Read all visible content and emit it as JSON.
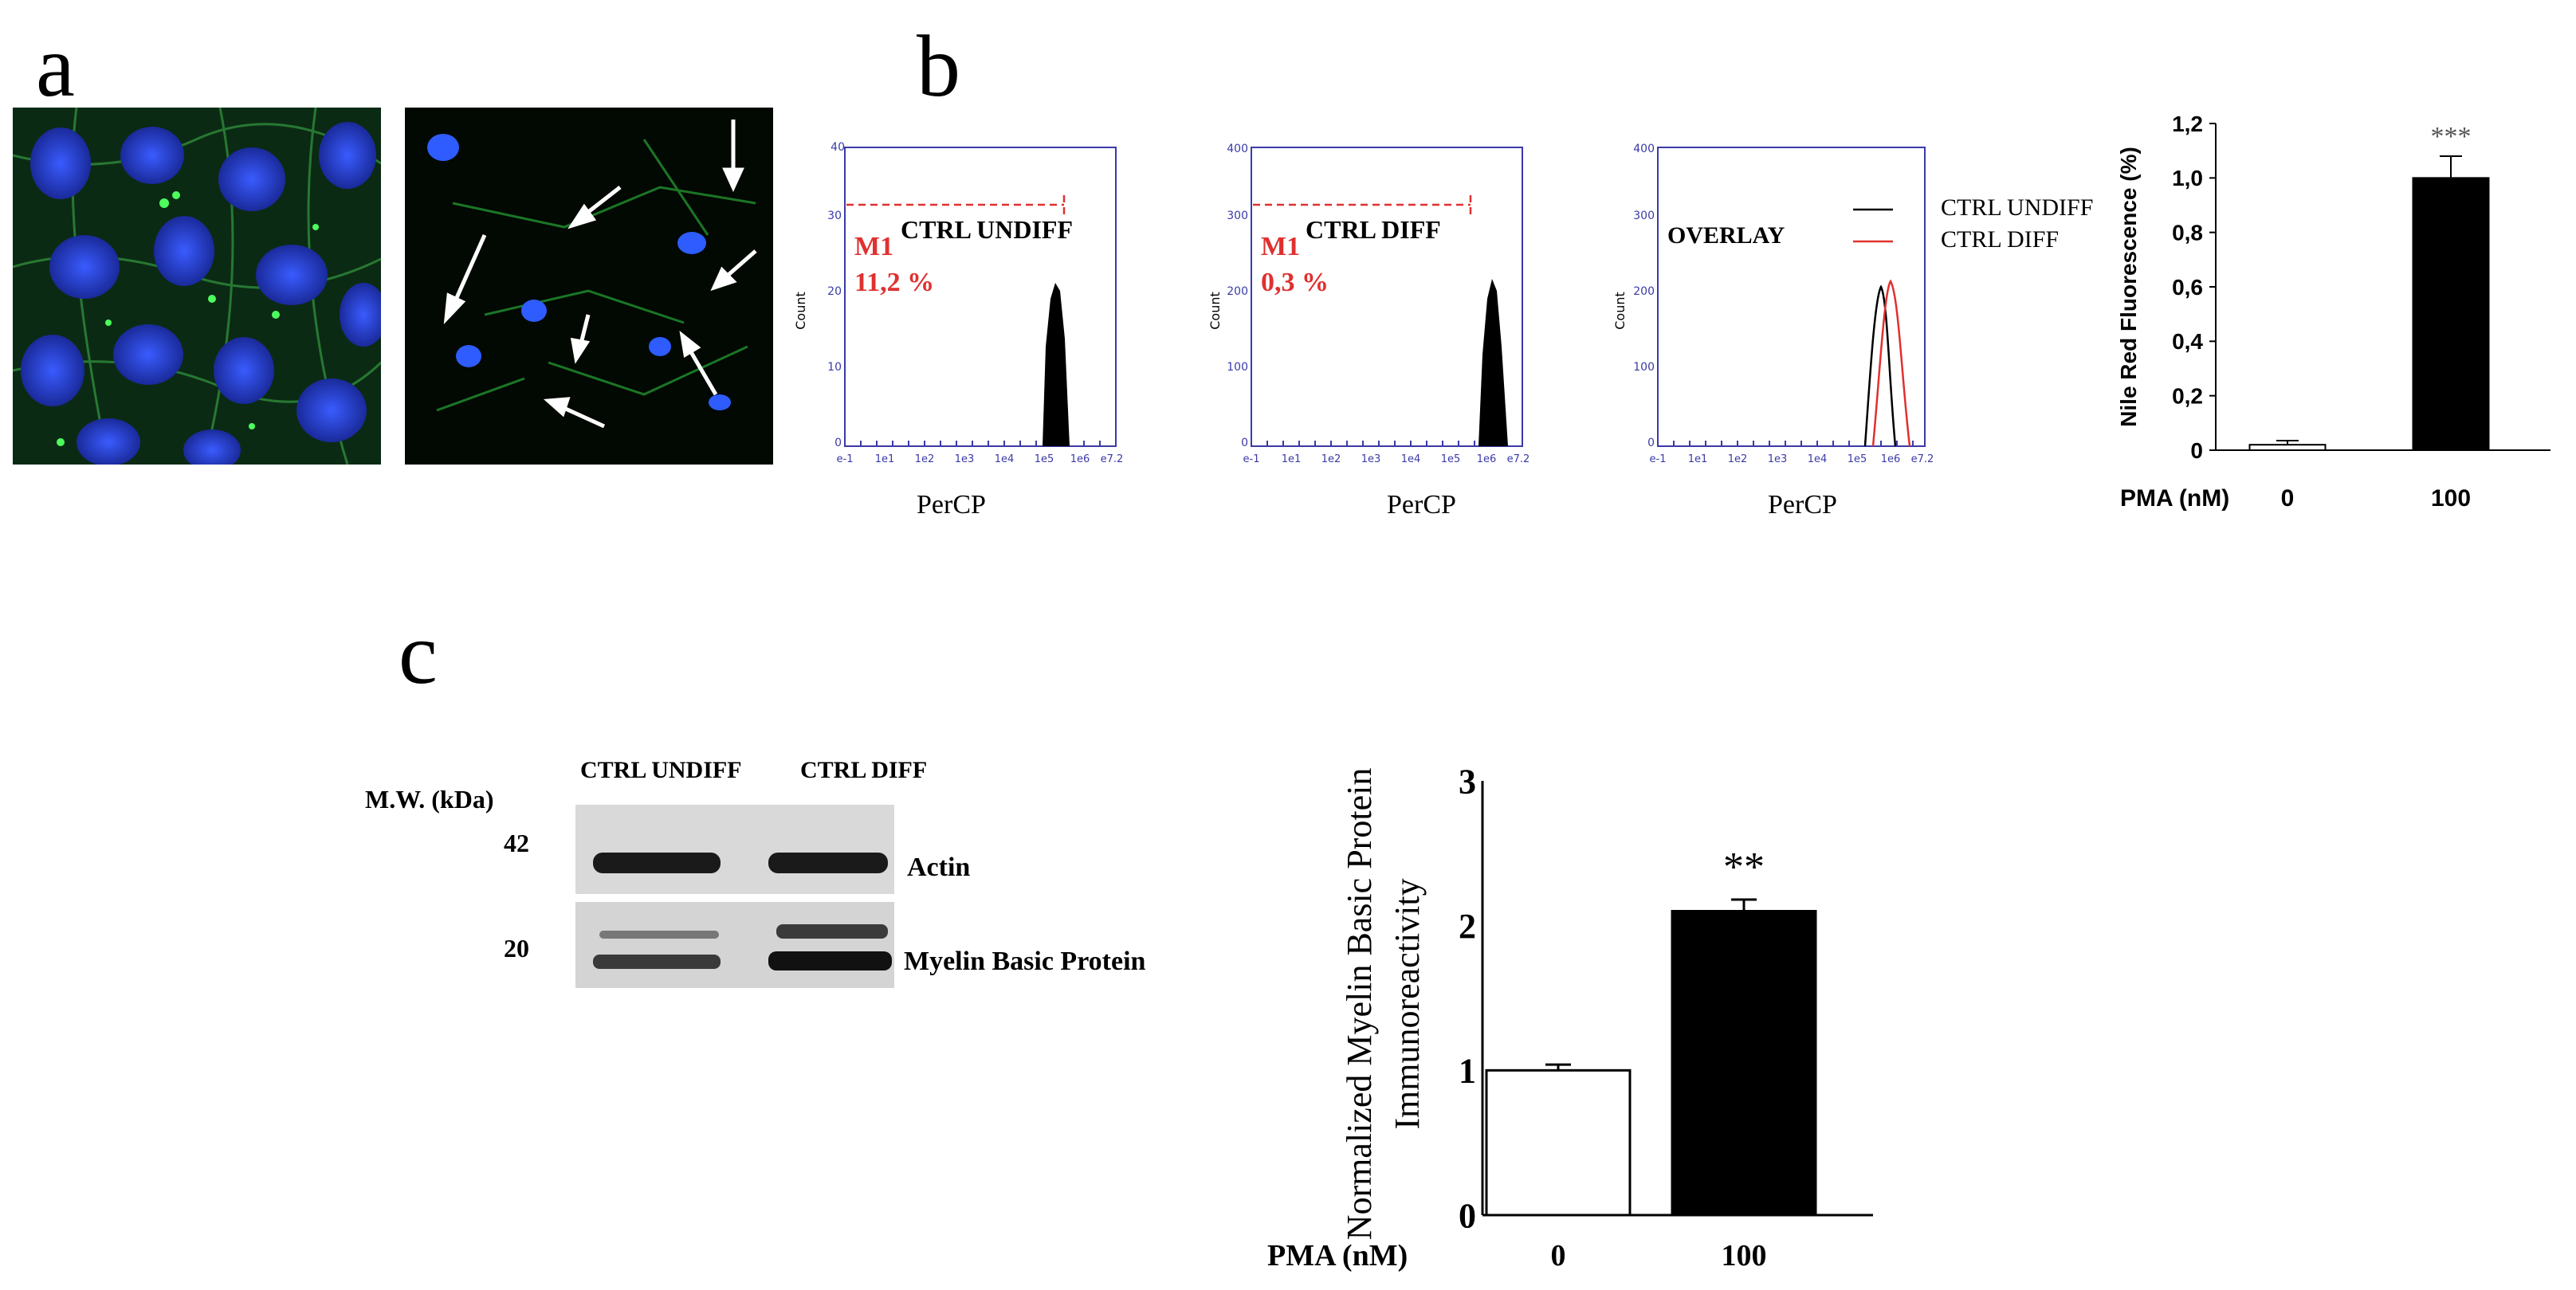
{
  "panels": {
    "a": "a",
    "b": "b",
    "c": "c"
  },
  "panel_b": {
    "histograms": [
      {
        "gate": "M1",
        "sample": "CTRL UNDIFF",
        "percent": "11,2 %",
        "xlabel": "PerCP",
        "ylabel": "Count",
        "yticks": [
          "0",
          "10",
          "20",
          "30",
          "40"
        ],
        "xticks": [
          "e-1",
          "1e1",
          "1e2",
          "1e3",
          "1e4",
          "1e5",
          "1e6",
          "e7.2"
        ]
      },
      {
        "gate": "M1",
        "sample": "CTRL DIFF",
        "percent": "0,3 %",
        "xlabel": "PerCP",
        "ylabel": "Count",
        "yticks": [
          "0",
          "100",
          "200",
          "300",
          "400"
        ],
        "xticks": [
          "e-1",
          "1e1",
          "1e2",
          "1e3",
          "1e4",
          "1e5",
          "1e6",
          "e7.2"
        ]
      },
      {
        "title": "OVERLAY",
        "xlabel": "PerCP",
        "ylabel": "Count",
        "yticks": [
          "0",
          "100",
          "200",
          "300",
          "400"
        ],
        "xticks": [
          "e-1",
          "1e1",
          "1e2",
          "1e3",
          "1e4",
          "1e5",
          "1e6",
          "e7.2"
        ],
        "legend": [
          {
            "label": "CTRL UNDIFF",
            "color": "#000000"
          },
          {
            "label": "CTRL DIFF",
            "color": "#e03030"
          }
        ]
      }
    ]
  },
  "panel_c": {
    "blot": {
      "mw_label": "M.W. (kDa)",
      "lanes": [
        "CTRL UNDIFF",
        "CTRL DIFF"
      ],
      "bands": [
        {
          "mw": "42",
          "name": "Actin"
        },
        {
          "mw": "20",
          "name": "Myelin Basic Protein"
        }
      ]
    }
  },
  "chart_data": [
    {
      "type": "bar",
      "title": "",
      "ylabel": "Nile Red Fluorescence (%)",
      "xlabel_prefix": "PMA (nM)",
      "categories": [
        "0",
        "100"
      ],
      "values": [
        0.02,
        1.0
      ],
      "errors": [
        0.015,
        0.08
      ],
      "bar_colors": [
        "#ffffff",
        "#000000"
      ],
      "ylim": [
        0,
        1.2
      ],
      "yticks": [
        "0",
        "0,2",
        "0,4",
        "0,6",
        "0,8",
        "1,0",
        "1,2"
      ],
      "annotation": "***"
    },
    {
      "type": "bar",
      "title": "",
      "ylabel_line1": "Normalized Myelin Basic Protein",
      "ylabel_line2": "Immunoreactivity",
      "xlabel_prefix": "PMA (nM)",
      "categories": [
        "0",
        "100"
      ],
      "values": [
        1.0,
        2.1
      ],
      "errors": [
        0.04,
        0.08
      ],
      "bar_colors": [
        "#ffffff",
        "#000000"
      ],
      "ylim": [
        0,
        3
      ],
      "yticks": [
        "0",
        "1",
        "2",
        "3"
      ],
      "annotation": "**"
    }
  ]
}
